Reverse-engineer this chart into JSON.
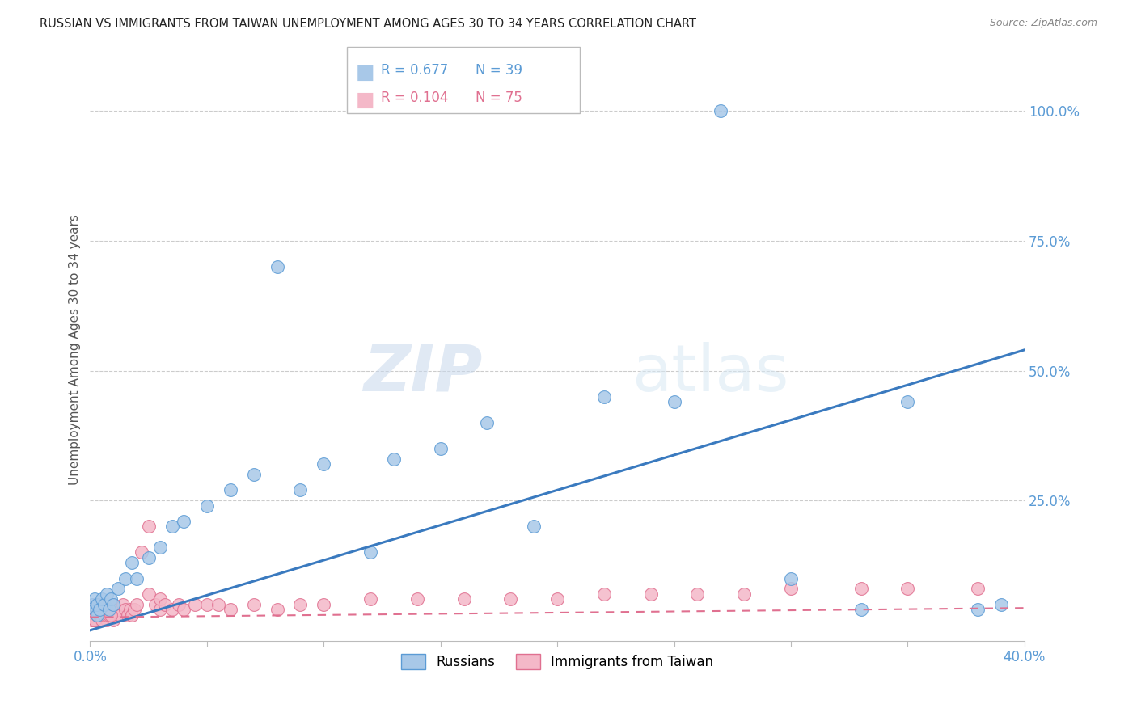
{
  "title": "RUSSIAN VS IMMIGRANTS FROM TAIWAN UNEMPLOYMENT AMONG AGES 30 TO 34 YEARS CORRELATION CHART",
  "source": "Source: ZipAtlas.com",
  "ylabel": "Unemployment Among Ages 30 to 34 years",
  "xlim": [
    0.0,
    0.4
  ],
  "ylim": [
    -0.02,
    1.1
  ],
  "xticks": [
    0.0,
    0.05,
    0.1,
    0.15,
    0.2,
    0.25,
    0.3,
    0.35,
    0.4
  ],
  "xtick_labels_show": {
    "0.0": "0.0%",
    "0.4": "40.0%"
  },
  "yticks_right": [
    0.0,
    0.25,
    0.5,
    0.75,
    1.0
  ],
  "ytick_labels_right": [
    "",
    "25.0%",
    "50.0%",
    "75.0%",
    "100.0%"
  ],
  "grid_color": "#cccccc",
  "background_color": "#ffffff",
  "legend_label_blue": "Russians",
  "legend_label_pink": "Immigrants from Taiwan",
  "blue_fill": "#a8c8e8",
  "blue_edge": "#5b9bd5",
  "blue_line": "#3a7abf",
  "pink_fill": "#f4b8c8",
  "pink_edge": "#e07090",
  "pink_line": "#e07090",
  "title_color": "#222222",
  "axis_label_color": "#555555",
  "right_tick_color": "#5b9bd5",
  "bottom_tick_color": "#5b9bd5",
  "legend_r_blue": "R = 0.677",
  "legend_n_blue": "N = 39",
  "legend_r_pink": "R = 0.104",
  "legend_n_pink": "N = 75",
  "blue_slope": 1.35,
  "blue_intercept": 0.0,
  "pink_slope": 0.045,
  "pink_intercept": 0.025,
  "russians_x": [
    0.001,
    0.002,
    0.002,
    0.003,
    0.003,
    0.004,
    0.005,
    0.006,
    0.007,
    0.008,
    0.009,
    0.01,
    0.012,
    0.015,
    0.018,
    0.02,
    0.025,
    0.03,
    0.035,
    0.04,
    0.05,
    0.06,
    0.07,
    0.08,
    0.09,
    0.1,
    0.12,
    0.13,
    0.15,
    0.17,
    0.19,
    0.22,
    0.25,
    0.27,
    0.3,
    0.33,
    0.35,
    0.38,
    0.39
  ],
  "russians_y": [
    0.05,
    0.04,
    0.06,
    0.03,
    0.05,
    0.04,
    0.06,
    0.05,
    0.07,
    0.04,
    0.06,
    0.05,
    0.08,
    0.1,
    0.13,
    0.1,
    0.14,
    0.16,
    0.2,
    0.21,
    0.24,
    0.27,
    0.3,
    0.7,
    0.27,
    0.32,
    0.15,
    0.33,
    0.35,
    0.4,
    0.2,
    0.45,
    0.44,
    1.0,
    0.1,
    0.04,
    0.44,
    0.04,
    0.05
  ],
  "taiwan_x": [
    0.001,
    0.001,
    0.001,
    0.002,
    0.002,
    0.002,
    0.002,
    0.003,
    0.003,
    0.003,
    0.004,
    0.004,
    0.005,
    0.005,
    0.005,
    0.006,
    0.006,
    0.007,
    0.007,
    0.008,
    0.008,
    0.009,
    0.01,
    0.01,
    0.01,
    0.011,
    0.012,
    0.013,
    0.014,
    0.015,
    0.016,
    0.017,
    0.018,
    0.019,
    0.02,
    0.022,
    0.025,
    0.025,
    0.028,
    0.03,
    0.03,
    0.032,
    0.035,
    0.038,
    0.04,
    0.045,
    0.05,
    0.055,
    0.06,
    0.07,
    0.08,
    0.09,
    0.1,
    0.12,
    0.14,
    0.16,
    0.18,
    0.2,
    0.22,
    0.24,
    0.26,
    0.28,
    0.3,
    0.33,
    0.35,
    0.38,
    0.001,
    0.002,
    0.003,
    0.004,
    0.005,
    0.006,
    0.007,
    0.008,
    0.009
  ],
  "taiwan_y": [
    0.02,
    0.03,
    0.04,
    0.02,
    0.03,
    0.04,
    0.05,
    0.02,
    0.03,
    0.04,
    0.03,
    0.05,
    0.02,
    0.03,
    0.04,
    0.03,
    0.04,
    0.02,
    0.03,
    0.03,
    0.04,
    0.03,
    0.02,
    0.04,
    0.05,
    0.03,
    0.04,
    0.03,
    0.05,
    0.04,
    0.03,
    0.04,
    0.03,
    0.04,
    0.05,
    0.15,
    0.07,
    0.2,
    0.05,
    0.04,
    0.06,
    0.05,
    0.04,
    0.05,
    0.04,
    0.05,
    0.05,
    0.05,
    0.04,
    0.05,
    0.04,
    0.05,
    0.05,
    0.06,
    0.06,
    0.06,
    0.06,
    0.06,
    0.07,
    0.07,
    0.07,
    0.07,
    0.08,
    0.08,
    0.08,
    0.08,
    0.02,
    0.02,
    0.03,
    0.03,
    0.02,
    0.03,
    0.03,
    0.03,
    0.03
  ]
}
